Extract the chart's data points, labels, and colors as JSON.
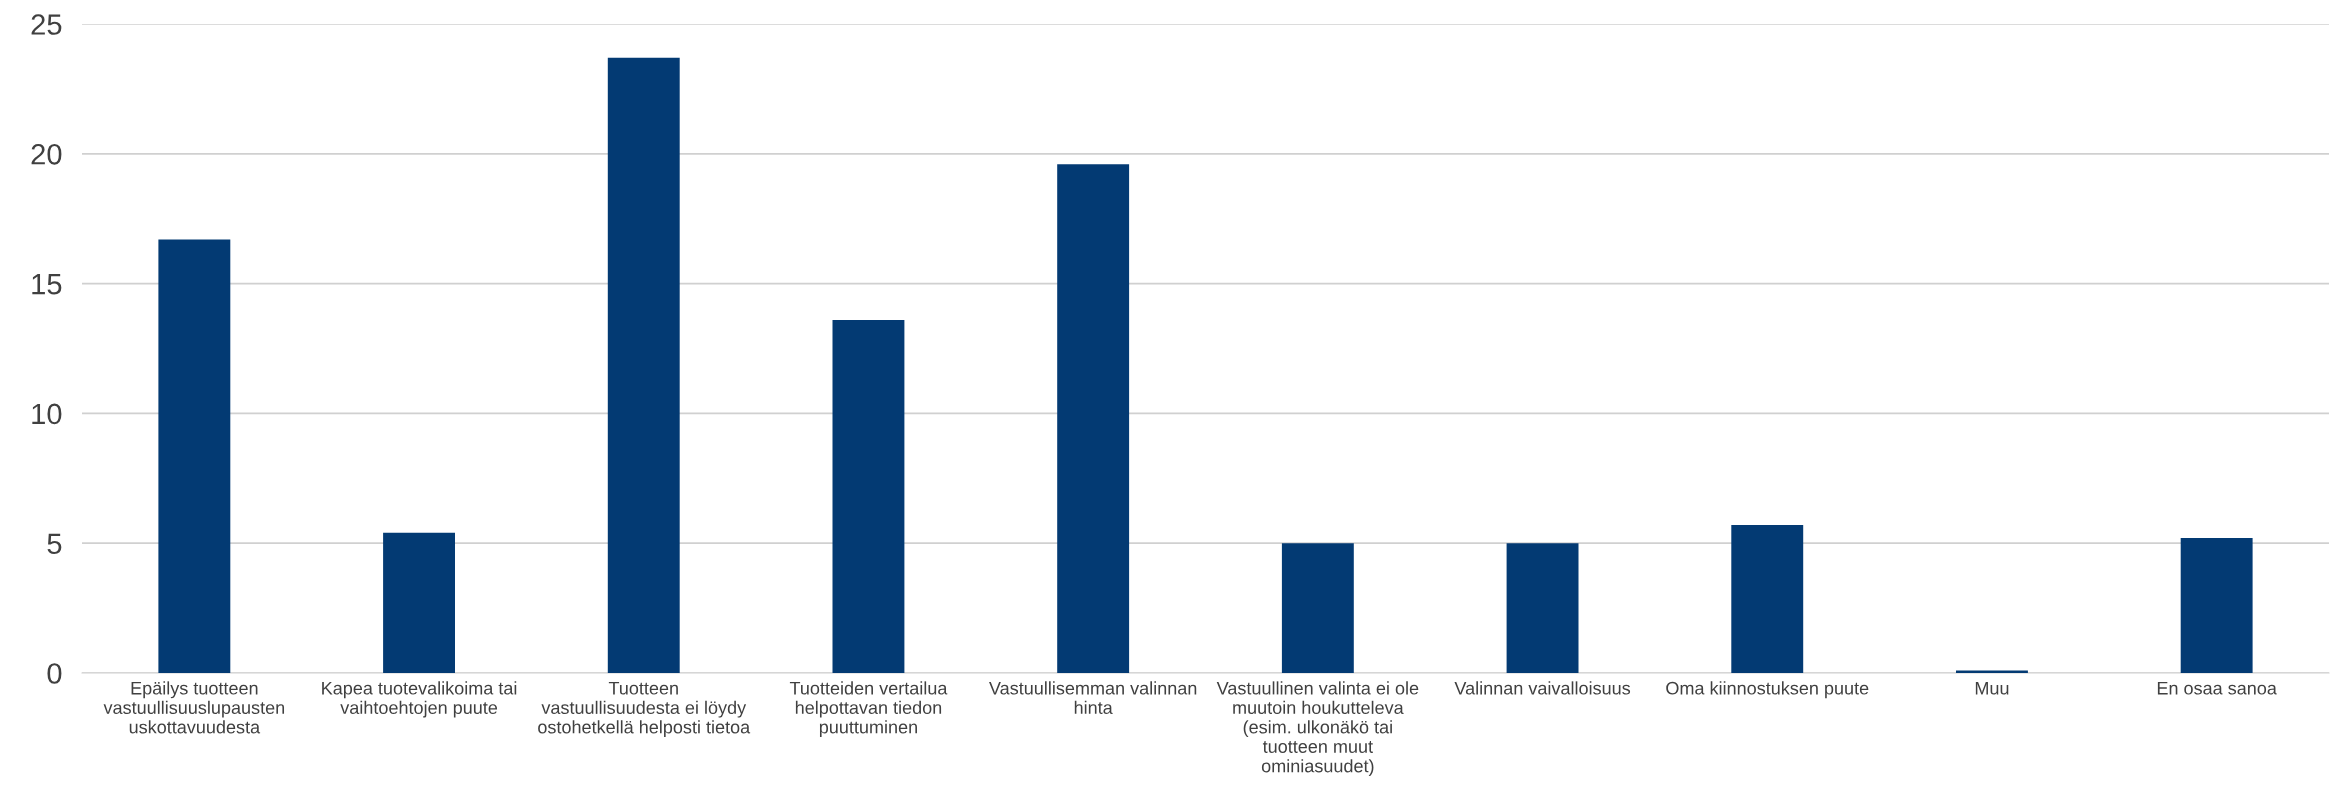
{
  "chart_data": {
    "type": "bar",
    "categories": [
      "Epäilys tuotteen\nvastuullisuuslupausten\nuskottavuudesta",
      "Kapea tuotevalikoima tai\nvaihtoehtojen puute",
      "Tuotteen\nvastuullisuudesta ei löydy\nostohetkellä helposti tietoa",
      "Tuotteiden vertailua\nhelpottavan tiedon\npuuttuminen",
      "Vastuullisemman valinnan\nhinta",
      "Vastuullinen valinta ei ole\nmuutoin houkutteleva\n(esim. ulkonäkö tai\ntuotteen muut\nominiasuudet)",
      "Valinnan vaivalloisuus",
      "Oma kiinnostuksen puute",
      "Muu",
      "En osaa sanoa"
    ],
    "values": [
      16.7,
      5.4,
      23.7,
      13.6,
      19.6,
      5.0,
      5.0,
      5.7,
      0.1,
      5.2
    ],
    "color": "#033a73",
    "ylim": [
      0,
      25
    ],
    "yticks": [
      0,
      5,
      10,
      15,
      20,
      25
    ],
    "grid": "y"
  }
}
